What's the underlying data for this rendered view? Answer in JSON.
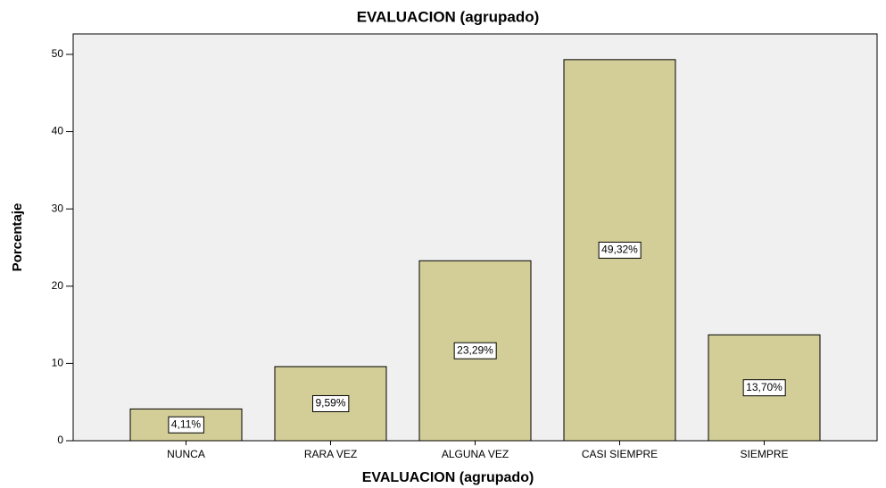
{
  "chart_data": {
    "type": "bar",
    "title": "EVALUACION (agrupado)",
    "x_label": "EVALUACION (agrupado)",
    "y_label": "Porcentaje",
    "categories": [
      "NUNCA",
      "RARA VEZ",
      "ALGUNA VEZ",
      "CASI SIEMPRE",
      "SIEMPRE"
    ],
    "values": [
      4.11,
      9.59,
      23.29,
      49.32,
      13.7
    ],
    "value_labels": [
      "4,11%",
      "9,59%",
      "23,29%",
      "49,32%",
      "13,70%"
    ],
    "color": "#d3ce97",
    "ylim": [
      0,
      52.65
    ],
    "yticks": [
      0,
      10,
      20,
      30,
      40,
      50
    ],
    "grid": false
  }
}
